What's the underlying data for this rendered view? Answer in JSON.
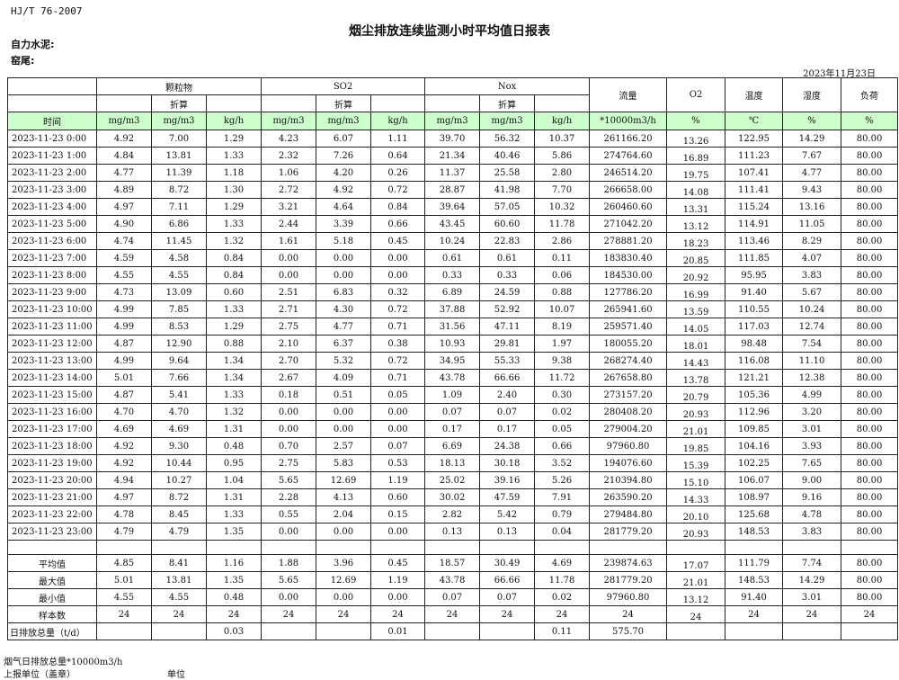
{
  "header": {
    "standard": "HJ/T  76-2007",
    "title": "烟尘排放连续监测小时平均值日报表",
    "company": "自力水泥:",
    "kiln": "窑尾:",
    "date": "2023年11月23日"
  },
  "columns": {
    "group_particulate": "颗粒物",
    "group_so2": "SO2",
    "group_nox": "Nox",
    "converted": "折算",
    "flow": "流量",
    "o2": "O2",
    "temperature": "温度",
    "humidity": "湿度",
    "load": "负荷",
    "time": "时间",
    "units": [
      "mg/m3",
      "mg/m3",
      "kg/h",
      "mg/m3",
      "mg/m3",
      "kg/h",
      "mg/m3",
      "mg/m3",
      "kg/h",
      "*10000m3/h",
      "%",
      "℃",
      "%",
      "%"
    ]
  },
  "rows": [
    [
      "2023-11-23 0:00",
      "4.92",
      "7.00",
      "1.29",
      "4.23",
      "6.07",
      "1.11",
      "39.70",
      "56.32",
      "10.37",
      "261166.20",
      "13.26",
      "122.95",
      "14.29",
      "80.00"
    ],
    [
      "2023-11-23 1:00",
      "4.84",
      "13.81",
      "1.33",
      "2.32",
      "7.26",
      "0.64",
      "21.34",
      "40.46",
      "5.86",
      "274764.60",
      "16.89",
      "111.23",
      "7.67",
      "80.00"
    ],
    [
      "2023-11-23 2:00",
      "4.77",
      "11.39",
      "1.18",
      "1.06",
      "4.20",
      "0.26",
      "11.37",
      "25.58",
      "2.80",
      "246514.20",
      "19.75",
      "107.41",
      "4.77",
      "80.00"
    ],
    [
      "2023-11-23 3:00",
      "4.89",
      "8.72",
      "1.30",
      "2.72",
      "4.92",
      "0.72",
      "28.87",
      "41.98",
      "7.70",
      "266658.00",
      "14.08",
      "111.41",
      "9.43",
      "80.00"
    ],
    [
      "2023-11-23 4:00",
      "4.97",
      "7.11",
      "1.29",
      "3.21",
      "4.64",
      "0.84",
      "39.64",
      "57.05",
      "10.32",
      "260460.60",
      "13.31",
      "115.24",
      "13.16",
      "80.00"
    ],
    [
      "2023-11-23 5:00",
      "4.90",
      "6.86",
      "1.33",
      "2.44",
      "3.39",
      "0.66",
      "43.45",
      "60.60",
      "11.78",
      "271042.20",
      "13.12",
      "114.91",
      "11.05",
      "80.00"
    ],
    [
      "2023-11-23 6:00",
      "4.74",
      "11.45",
      "1.32",
      "1.61",
      "5.18",
      "0.45",
      "10.24",
      "22.83",
      "2.86",
      "278881.20",
      "18.23",
      "113.46",
      "8.29",
      "80.00"
    ],
    [
      "2023-11-23 7:00",
      "4.59",
      "4.58",
      "0.84",
      "0.00",
      "0.00",
      "0.00",
      "0.61",
      "0.61",
      "0.11",
      "183830.40",
      "20.85",
      "111.85",
      "4.07",
      "80.00"
    ],
    [
      "2023-11-23 8:00",
      "4.55",
      "4.55",
      "0.84",
      "0.00",
      "0.00",
      "0.00",
      "0.33",
      "0.33",
      "0.06",
      "184530.00",
      "20.92",
      "95.95",
      "3.83",
      "80.00"
    ],
    [
      "2023-11-23 9:00",
      "4.73",
      "13.09",
      "0.60",
      "2.51",
      "6.83",
      "0.32",
      "6.89",
      "24.59",
      "0.88",
      "127786.20",
      "16.99",
      "91.40",
      "5.67",
      "80.00"
    ],
    [
      "2023-11-23 10:00",
      "4.99",
      "7.85",
      "1.33",
      "2.71",
      "4.30",
      "0.72",
      "37.88",
      "52.92",
      "10.07",
      "265941.60",
      "13.59",
      "110.55",
      "10.24",
      "80.00"
    ],
    [
      "2023-11-23 11:00",
      "4.99",
      "8.53",
      "1.29",
      "2.75",
      "4.77",
      "0.71",
      "31.56",
      "47.11",
      "8.19",
      "259571.40",
      "14.05",
      "117.03",
      "12.74",
      "80.00"
    ],
    [
      "2023-11-23 12:00",
      "4.87",
      "12.90",
      "0.88",
      "2.10",
      "6.37",
      "0.38",
      "10.93",
      "29.81",
      "1.97",
      "180055.20",
      "18.01",
      "98.48",
      "7.54",
      "80.00"
    ],
    [
      "2023-11-23 13:00",
      "4.99",
      "9.64",
      "1.34",
      "2.70",
      "5.32",
      "0.72",
      "34.95",
      "55.33",
      "9.38",
      "268274.40",
      "14.43",
      "116.08",
      "11.10",
      "80.00"
    ],
    [
      "2023-11-23 14:00",
      "5.01",
      "7.66",
      "1.34",
      "2.67",
      "4.09",
      "0.71",
      "43.78",
      "66.66",
      "11.72",
      "267658.80",
      "13.78",
      "121.21",
      "12.38",
      "80.00"
    ],
    [
      "2023-11-23 15:00",
      "4.87",
      "5.41",
      "1.33",
      "0.18",
      "0.51",
      "0.05",
      "1.09",
      "2.40",
      "0.30",
      "273157.20",
      "20.79",
      "105.36",
      "4.99",
      "80.00"
    ],
    [
      "2023-11-23 16:00",
      "4.70",
      "4.70",
      "1.32",
      "0.00",
      "0.00",
      "0.00",
      "0.07",
      "0.07",
      "0.02",
      "280408.20",
      "20.93",
      "112.96",
      "3.20",
      "80.00"
    ],
    [
      "2023-11-23 17:00",
      "4.69",
      "4.69",
      "1.31",
      "0.00",
      "0.00",
      "0.00",
      "0.17",
      "0.17",
      "0.05",
      "279004.20",
      "21.01",
      "109.85",
      "3.01",
      "80.00"
    ],
    [
      "2023-11-23 18:00",
      "4.92",
      "9.30",
      "0.48",
      "0.70",
      "2.57",
      "0.07",
      "6.69",
      "24.38",
      "0.66",
      "97960.80",
      "19.85",
      "104.16",
      "3.93",
      "80.00"
    ],
    [
      "2023-11-23 19:00",
      "4.92",
      "10.44",
      "0.95",
      "2.75",
      "5.83",
      "0.53",
      "18.13",
      "30.18",
      "3.52",
      "194076.60",
      "15.39",
      "102.25",
      "7.65",
      "80.00"
    ],
    [
      "2023-11-23 20:00",
      "4.94",
      "10.27",
      "1.04",
      "5.65",
      "12.69",
      "1.19",
      "25.02",
      "39.16",
      "5.26",
      "210394.80",
      "15.10",
      "106.07",
      "9.00",
      "80.00"
    ],
    [
      "2023-11-23 21:00",
      "4.97",
      "8.72",
      "1.31",
      "2.28",
      "4.13",
      "0.60",
      "30.02",
      "47.59",
      "7.91",
      "263590.20",
      "14.33",
      "108.97",
      "9.16",
      "80.00"
    ],
    [
      "2023-11-23 22:00",
      "4.78",
      "8.45",
      "1.33",
      "0.55",
      "2.04",
      "0.15",
      "2.82",
      "5.42",
      "0.79",
      "279484.80",
      "20.10",
      "125.68",
      "4.78",
      "80.00"
    ],
    [
      "2023-11-23 23:00",
      "4.79",
      "4.79",
      "1.35",
      "0.00",
      "0.00",
      "0.00",
      "0.13",
      "0.13",
      "0.04",
      "281779.20",
      "20.93",
      "148.53",
      "3.83",
      "80.00"
    ]
  ],
  "summary": [
    [
      "平均值",
      "4.85",
      "8.41",
      "1.16",
      "1.88",
      "3.96",
      "0.45",
      "18.57",
      "30.49",
      "4.69",
      "239874.63",
      "17.07",
      "111.79",
      "7.74",
      "80.00"
    ],
    [
      "最大值",
      "5.01",
      "13.81",
      "1.35",
      "5.65",
      "12.69",
      "1.19",
      "43.78",
      "66.66",
      "11.78",
      "281779.20",
      "21.01",
      "148.53",
      "14.29",
      "80.00"
    ],
    [
      "最小值",
      "4.55",
      "4.55",
      "0.48",
      "0.00",
      "0.00",
      "0.00",
      "0.07",
      "0.07",
      "0.02",
      "97960.80",
      "13.12",
      "91.40",
      "3.01",
      "80.00"
    ],
    [
      "样本数",
      "24",
      "24",
      "24",
      "24",
      "24",
      "24",
      "24",
      "24",
      "24",
      "24",
      "24",
      "24",
      "24",
      "24"
    ],
    [
      "日排放总量（t/d）",
      "",
      "",
      "0.03",
      "",
      "",
      "0.01",
      "",
      "",
      "0.11",
      "575.70",
      "",
      "",
      "",
      ""
    ]
  ],
  "footer": {
    "flue_gas_total": "烟气日排放总量*10000m3/h",
    "reporting_unit": "上报单位（盖章）",
    "unit": "单位"
  }
}
